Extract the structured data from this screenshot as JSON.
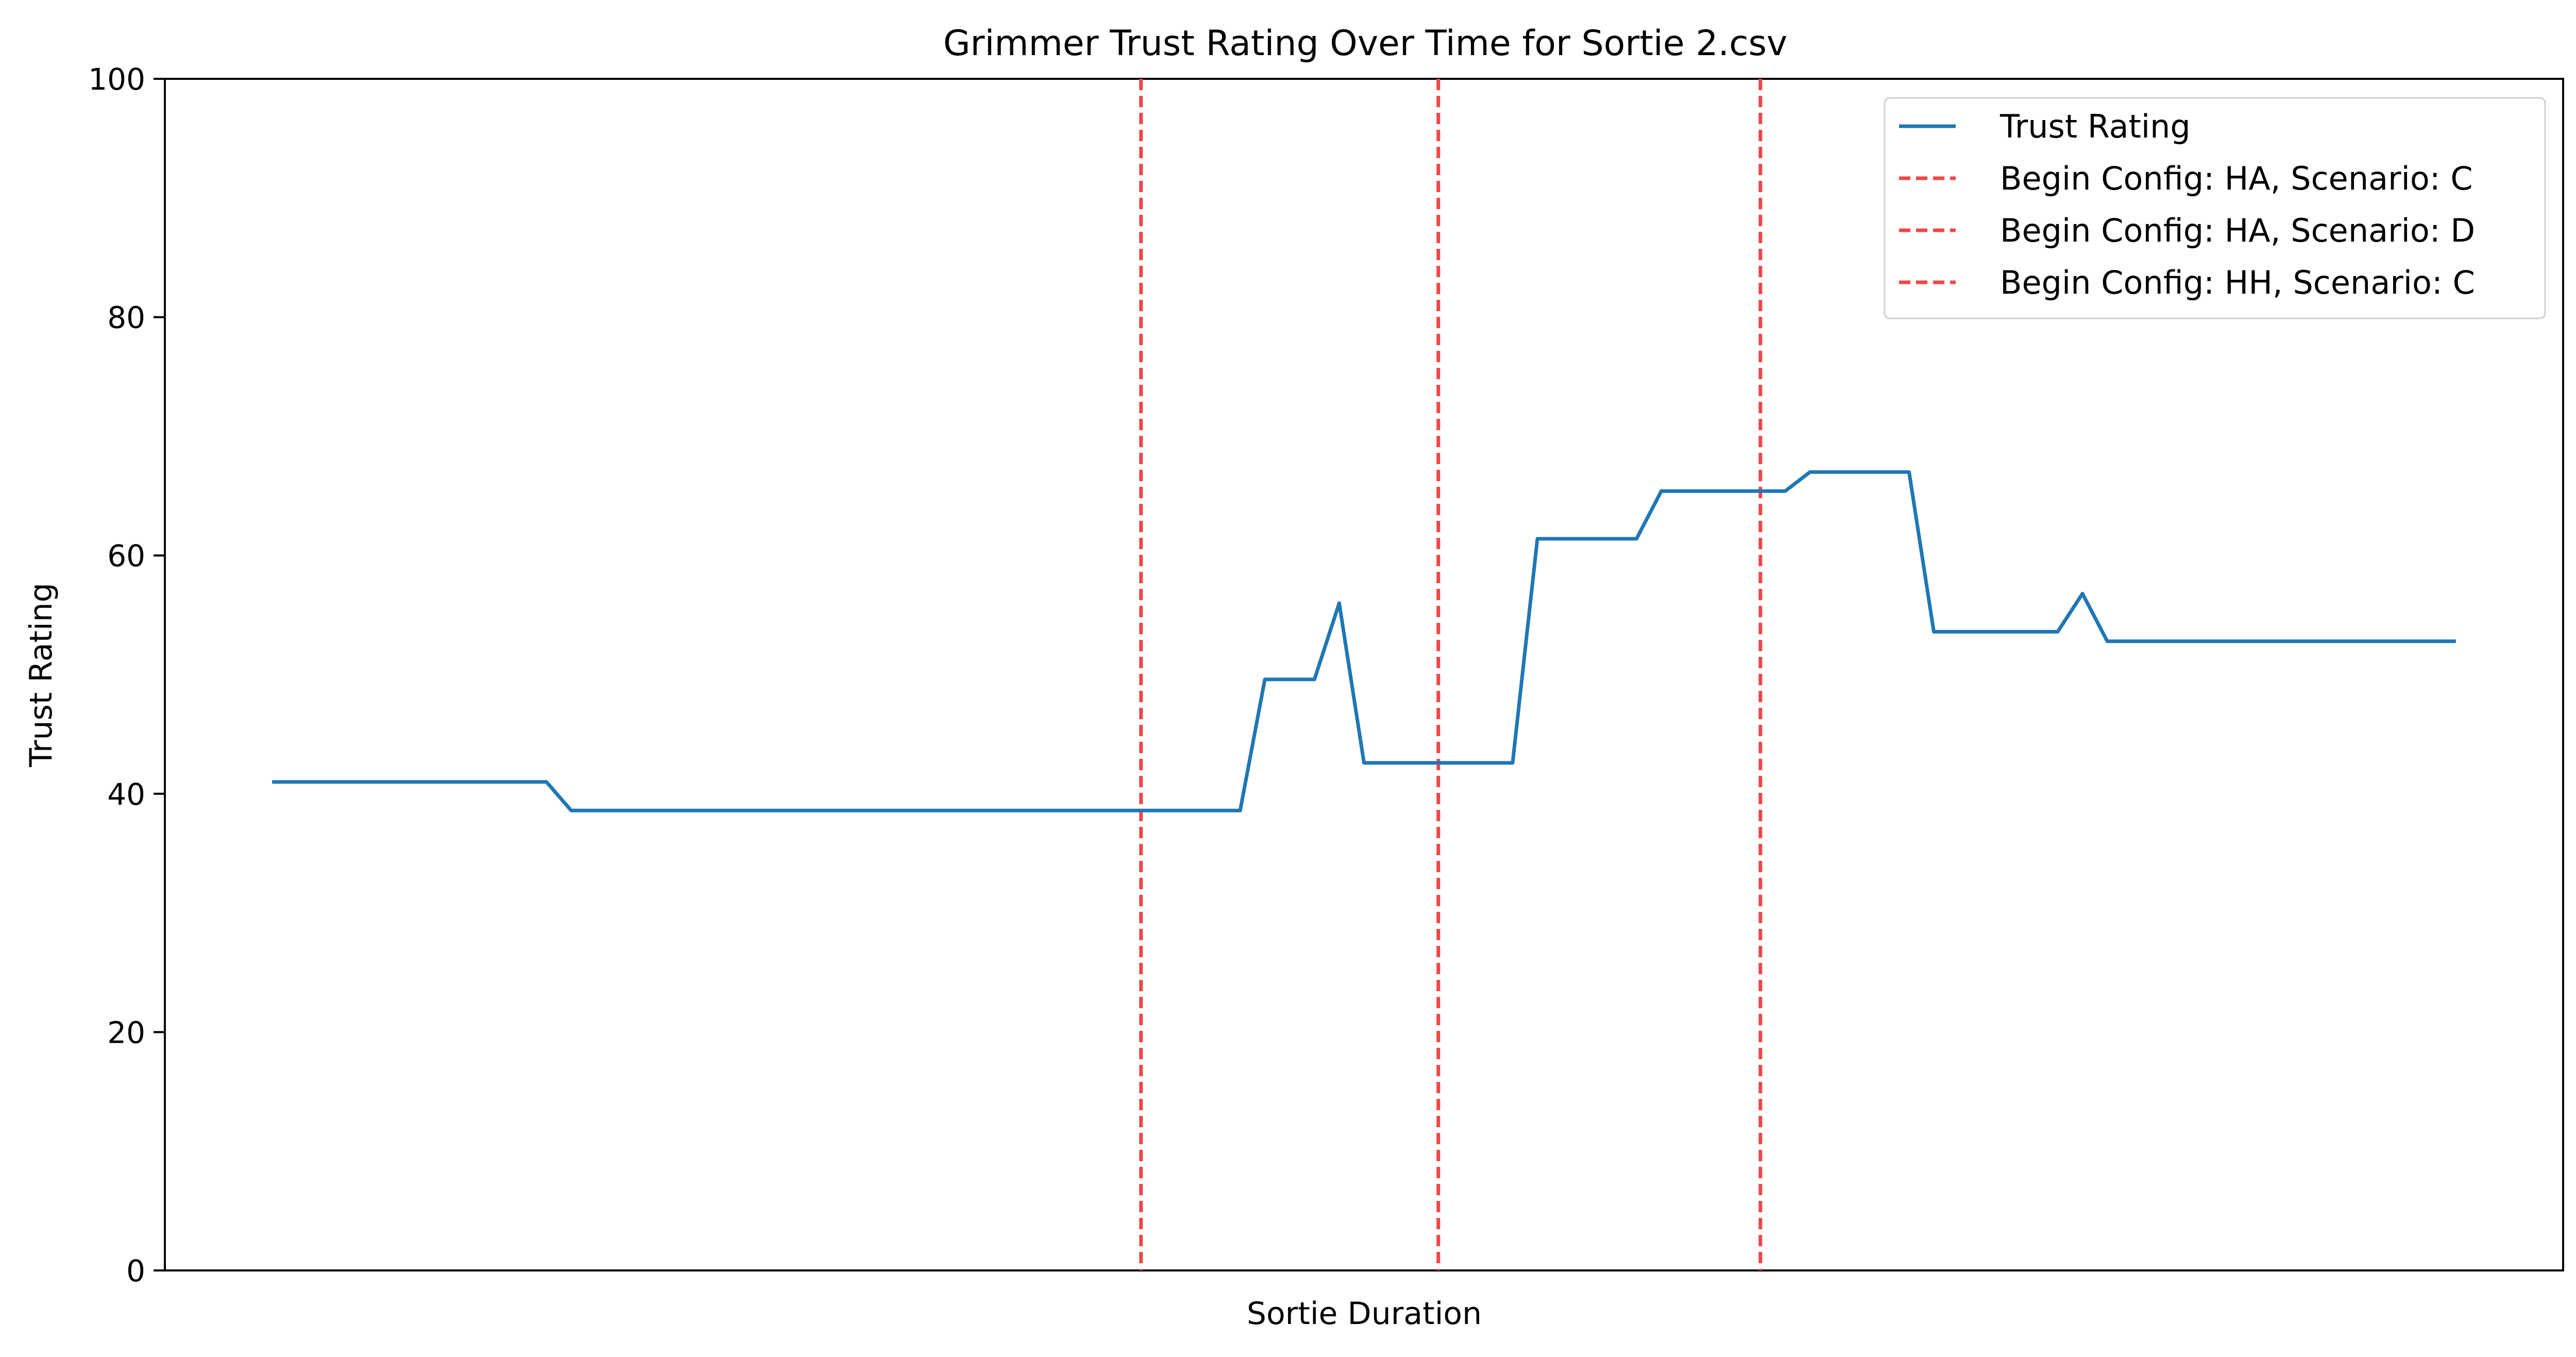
{
  "chart_data": {
    "type": "line",
    "title": "Grimmer Trust Rating Over Time for Sortie 2.csv",
    "xlabel": "Sortie Duration",
    "ylabel": "Trust Rating",
    "xlim": [
      -4.4,
      92.4
    ],
    "ylim": [
      0,
      100
    ],
    "yticks": [
      0,
      20,
      40,
      60,
      80,
      100
    ],
    "xticks": [],
    "grid": false,
    "legend_position": "top-right",
    "series": [
      {
        "name": "Trust Rating",
        "color": "#1f77b4",
        "style": "solid",
        "x": [
          0,
          1,
          2,
          3,
          4,
          5,
          6,
          7,
          8,
          9,
          10,
          11,
          12,
          13,
          14,
          15,
          16,
          17,
          18,
          19,
          20,
          21,
          22,
          23,
          24,
          25,
          26,
          27,
          28,
          29,
          30,
          31,
          32,
          33,
          34,
          35,
          36,
          37,
          38,
          39,
          40,
          41,
          42,
          43,
          44,
          45,
          46,
          47,
          48,
          49,
          50,
          51,
          52,
          53,
          54,
          55,
          56,
          57,
          58,
          59,
          60,
          61,
          62,
          63,
          64,
          65,
          66,
          67,
          68,
          69,
          70,
          71,
          72,
          73,
          74,
          75,
          76,
          77,
          78,
          79,
          80,
          81,
          82,
          83,
          84,
          85,
          86,
          87,
          88
        ],
        "values": [
          41,
          41,
          41,
          41,
          41,
          41,
          41,
          41,
          41,
          41,
          41,
          41,
          38.6,
          38.6,
          38.6,
          38.6,
          38.6,
          38.6,
          38.6,
          38.6,
          38.6,
          38.6,
          38.6,
          38.6,
          38.6,
          38.6,
          38.6,
          38.6,
          38.6,
          38.6,
          38.6,
          38.6,
          38.6,
          38.6,
          38.6,
          38.6,
          38.6,
          38.6,
          38.6,
          38.6,
          49.6,
          49.6,
          49.6,
          56,
          42.6,
          42.6,
          42.6,
          42.6,
          42.6,
          42.6,
          42.6,
          61.4,
          61.4,
          61.4,
          61.4,
          61.4,
          65.4,
          65.4,
          65.4,
          65.4,
          65.4,
          65.4,
          67,
          67,
          67,
          67,
          67,
          53.6,
          53.6,
          53.6,
          53.6,
          53.6,
          53.6,
          56.8,
          52.8,
          52.8,
          52.8,
          52.8,
          52.8,
          52.8,
          52.8,
          52.8,
          52.8,
          52.8,
          52.8,
          52.8,
          52.8,
          52.8,
          52.8
        ]
      }
    ],
    "vlines": [
      {
        "name": "Begin Config: HA, Scenario: C",
        "x": 35,
        "color": "#f04747",
        "style": "dashed"
      },
      {
        "name": "Begin Config: HA, Scenario: D",
        "x": 47,
        "color": "#f04747",
        "style": "dashed"
      },
      {
        "name": "Begin Config: HH, Scenario: C",
        "x": 60,
        "color": "#f04747",
        "style": "dashed"
      }
    ]
  }
}
